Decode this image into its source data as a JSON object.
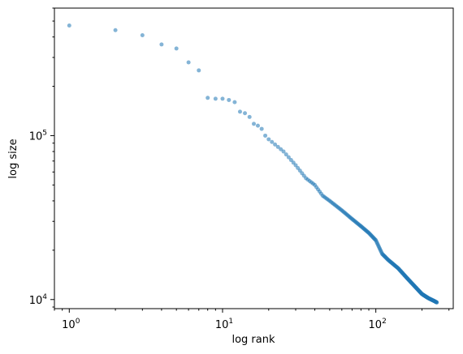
{
  "chart_data": {
    "type": "scatter",
    "title": "",
    "xlabel": "log rank",
    "ylabel": "log size",
    "x_scale": "log",
    "y_scale": "log",
    "xlim": [
      0.8,
      320
    ],
    "ylim": [
      8800,
      600000
    ],
    "grid": false,
    "point_color": "#1f77b4",
    "point_opacity": 0.55,
    "x_ticks": [
      {
        "value": 1,
        "base": "10",
        "exp": "0"
      },
      {
        "value": 10,
        "base": "10",
        "exp": "1"
      },
      {
        "value": 100,
        "base": "10",
        "exp": "2"
      }
    ],
    "y_ticks": [
      {
        "value": 10000,
        "base": "10",
        "exp": "4"
      },
      {
        "value": 100000,
        "base": "10",
        "exp": "5"
      }
    ],
    "series": [
      {
        "anchors": [
          [
            1,
            470000
          ],
          [
            2,
            440000
          ],
          [
            3,
            410000
          ],
          [
            4,
            360000
          ],
          [
            5,
            340000
          ],
          [
            6,
            280000
          ],
          [
            7,
            250000
          ],
          [
            8,
            170000
          ],
          [
            9,
            168000
          ],
          [
            10,
            168000
          ],
          [
            11,
            165000
          ],
          [
            12,
            160000
          ],
          [
            13,
            140000
          ],
          [
            14,
            137000
          ],
          [
            15,
            130000
          ],
          [
            16,
            118000
          ],
          [
            17,
            115000
          ],
          [
            18,
            110000
          ],
          [
            19,
            100000
          ],
          [
            20,
            95000
          ],
          [
            25,
            80000
          ],
          [
            30,
            66000
          ],
          [
            35,
            55000
          ],
          [
            40,
            50000
          ],
          [
            45,
            43000
          ],
          [
            50,
            40000
          ],
          [
            60,
            35000
          ],
          [
            70,
            31000
          ],
          [
            80,
            28000
          ],
          [
            90,
            25500
          ],
          [
            100,
            23000
          ],
          [
            110,
            19000
          ],
          [
            120,
            17500
          ],
          [
            140,
            15500
          ],
          [
            160,
            13500
          ],
          [
            180,
            12000
          ],
          [
            200,
            10800
          ],
          [
            220,
            10200
          ],
          [
            240,
            9800
          ],
          [
            250,
            9600
          ]
        ],
        "count": 250
      }
    ]
  }
}
